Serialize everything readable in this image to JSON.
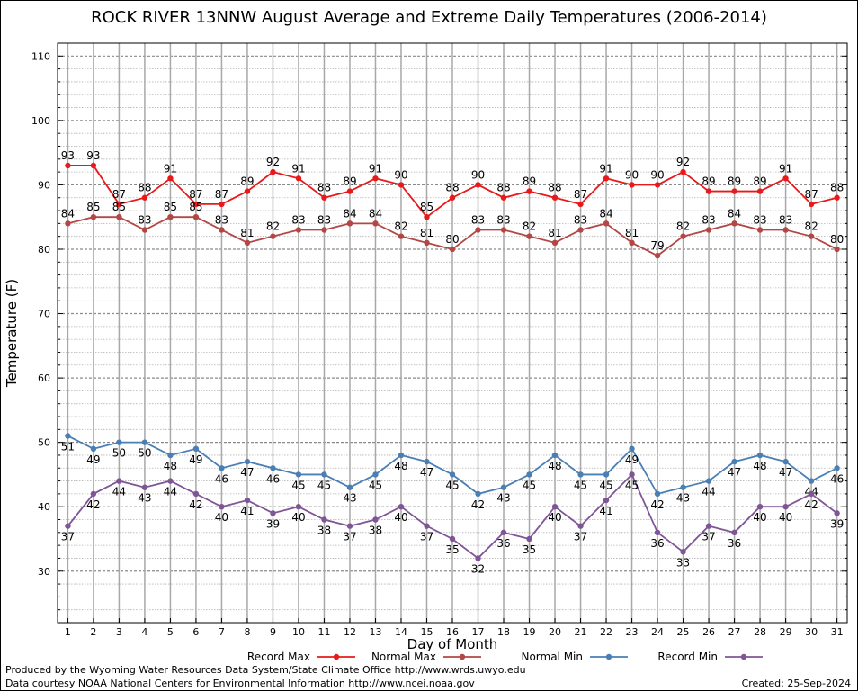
{
  "chart_data": {
    "type": "line",
    "title": "ROCK RIVER 13NNW August Average and Extreme Daily Temperatures (2006-2014)",
    "xlabel": "Day of Month",
    "ylabel": "Temperature (F)",
    "x": [
      1,
      2,
      3,
      4,
      5,
      6,
      7,
      8,
      9,
      10,
      11,
      12,
      13,
      14,
      15,
      16,
      17,
      18,
      19,
      20,
      21,
      22,
      23,
      24,
      25,
      26,
      27,
      28,
      29,
      30,
      31
    ],
    "xlim": [
      0.6,
      31.4
    ],
    "ylim": [
      22,
      112
    ],
    "yticks": [
      30,
      40,
      50,
      60,
      70,
      80,
      90,
      100,
      110
    ],
    "grid": true,
    "legend_position": "bottom",
    "series": [
      {
        "name": "Record Max",
        "color": "#e8191a",
        "label_pos": "above",
        "values": [
          93,
          93,
          87,
          88,
          91,
          87,
          87,
          89,
          92,
          91,
          88,
          89,
          91,
          90,
          85,
          88,
          90,
          88,
          89,
          88,
          87,
          91,
          90,
          90,
          92,
          89,
          89,
          89,
          91,
          87,
          88
        ]
      },
      {
        "name": "Normal Max",
        "color": "#b24745",
        "label_pos": "above",
        "values": [
          84,
          85,
          85,
          83,
          85,
          85,
          83,
          81,
          82,
          83,
          83,
          84,
          84,
          82,
          81,
          80,
          83,
          83,
          82,
          81,
          83,
          84,
          81,
          79,
          82,
          83,
          84,
          83,
          83,
          82,
          80
        ]
      },
      {
        "name": "Normal Min",
        "color": "#4a7fb5",
        "label_pos": "below",
        "values": [
          51,
          49,
          50,
          50,
          48,
          49,
          46,
          47,
          46,
          45,
          45,
          43,
          45,
          48,
          47,
          45,
          42,
          43,
          45,
          48,
          45,
          45,
          49,
          42,
          43,
          44,
          47,
          48,
          47,
          44,
          46
        ]
      },
      {
        "name": "Record Min",
        "color": "#7f5596",
        "label_pos": "below",
        "values": [
          37,
          42,
          44,
          43,
          44,
          42,
          40,
          41,
          39,
          40,
          38,
          37,
          38,
          40,
          37,
          35,
          32,
          36,
          35,
          40,
          37,
          41,
          45,
          36,
          33,
          37,
          36,
          40,
          40,
          42,
          39
        ]
      }
    ]
  },
  "footer": {
    "credit_line1": "Produced by the Wyoming Water Resources Data System/State Climate Office http://www.wrds.uwyo.edu",
    "credit_line2": "Data courtesy NOAA National Centers for Environmental Information http://www.ncei.noaa.gov",
    "created": "Created:  25-Sep-2024"
  }
}
